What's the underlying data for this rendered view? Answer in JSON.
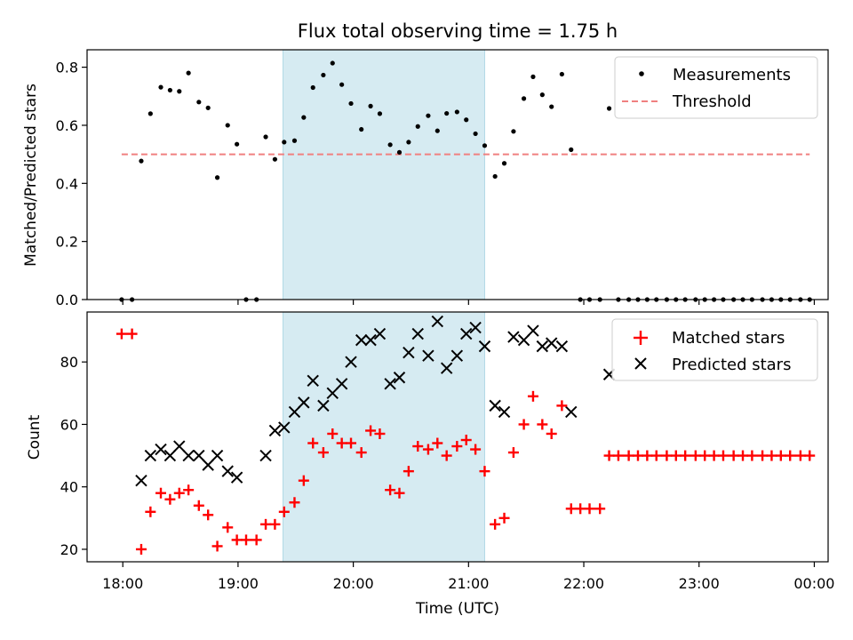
{
  "figure": {
    "title": "Flux total observing time = 1.75 h",
    "xlabel": "Time (UTC)",
    "x_tick_labels": [
      "18:00",
      "19:00",
      "20:00",
      "21:00",
      "22:00",
      "23:00",
      "00:00"
    ],
    "x_ticks_hours": [
      18,
      19,
      20,
      21,
      22,
      23,
      24
    ],
    "x_range_hours": [
      17.69,
      24.12
    ],
    "shaded_span_hours": [
      19.39,
      21.14
    ],
    "shaded_color": "#add8e6"
  },
  "chart_data": [
    {
      "type": "scatter",
      "ylabel": "Matched/Predicted stars",
      "ylim": [
        0,
        0.86
      ],
      "y_ticks": [
        0.0,
        0.2,
        0.4,
        0.6,
        0.8
      ],
      "y_tick_labels": [
        "0.0",
        "0.2",
        "0.4",
        "0.6",
        "0.8"
      ],
      "legend_position": "top-right",
      "series": [
        {
          "name": "Measurements",
          "marker": "dot",
          "color": "#000000",
          "x_hours": [
            17.99,
            18.08,
            18.16,
            18.24,
            18.33,
            18.41,
            18.49,
            18.57,
            18.66,
            18.74,
            18.82,
            18.91,
            18.99,
            19.07,
            19.16,
            19.24,
            19.32,
            19.4,
            19.49,
            19.57,
            19.65,
            19.74,
            19.82,
            19.9,
            19.98,
            20.07,
            20.15,
            20.23,
            20.32,
            20.4,
            20.48,
            20.56,
            20.65,
            20.73,
            20.81,
            20.9,
            20.98,
            21.06,
            21.14,
            21.23,
            21.31,
            21.39,
            21.48,
            21.56,
            21.64,
            21.72,
            21.81,
            21.89,
            21.97,
            22.05,
            22.14,
            22.22,
            22.3,
            22.39,
            22.47,
            22.55,
            22.63,
            22.72,
            22.8,
            22.88,
            22.97,
            23.05,
            23.13,
            23.21,
            23.3,
            23.38,
            23.46,
            23.55,
            23.63,
            23.71,
            23.79,
            23.88,
            23.96
          ],
          "y": [
            0.0,
            0.0,
            0.477,
            0.64,
            0.731,
            0.721,
            0.717,
            0.78,
            0.68,
            0.66,
            0.42,
            0.6,
            0.535,
            0.0,
            0.0,
            0.56,
            0.483,
            0.542,
            0.547,
            0.627,
            0.73,
            0.773,
            0.814,
            0.74,
            0.675,
            0.586,
            0.666,
            0.64,
            0.533,
            0.507,
            0.542,
            0.596,
            0.633,
            0.581,
            0.641,
            0.646,
            0.619,
            0.571,
            0.53,
            0.424,
            0.469,
            0.579,
            0.692,
            0.767,
            0.705,
            0.664,
            0.776,
            0.516,
            0.0,
            0.0,
            0.0,
            0.658,
            0.0,
            0.0,
            0.0,
            0.0,
            0.0,
            0.0,
            0.0,
            0.0,
            0.0,
            0.0,
            0.0,
            0.0,
            0.0,
            0.0,
            0.0,
            0.0,
            0.0,
            0.0,
            0.0,
            0.0,
            0.0
          ]
        },
        {
          "name": "Threshold",
          "marker": "dashed-line",
          "color": "#f08080",
          "x_hours": [
            17.99,
            23.96
          ],
          "y": [
            0.5,
            0.5
          ]
        }
      ]
    },
    {
      "type": "scatter",
      "ylabel": "Count",
      "ylim": [
        16,
        96
      ],
      "y_ticks": [
        20,
        40,
        60,
        80
      ],
      "y_tick_labels": [
        "20",
        "40",
        "60",
        "80"
      ],
      "legend_position": "top-right",
      "series": [
        {
          "name": "Matched stars",
          "marker": "plus",
          "color": "#ff0000",
          "x_hours": [
            17.99,
            18.08,
            18.16,
            18.24,
            18.33,
            18.41,
            18.49,
            18.57,
            18.66,
            18.74,
            18.82,
            18.91,
            18.99,
            19.07,
            19.16,
            19.24,
            19.32,
            19.4,
            19.49,
            19.57,
            19.65,
            19.74,
            19.82,
            19.9,
            19.98,
            20.07,
            20.15,
            20.23,
            20.32,
            20.4,
            20.48,
            20.56,
            20.65,
            20.73,
            20.81,
            20.9,
            20.98,
            21.06,
            21.14,
            21.23,
            21.31,
            21.39,
            21.48,
            21.56,
            21.64,
            21.72,
            21.81,
            21.89,
            21.97,
            22.05,
            22.14,
            22.22,
            22.3,
            22.39,
            22.47,
            22.55,
            22.63,
            22.72,
            22.8,
            22.88,
            22.97,
            23.05,
            23.13,
            23.21,
            23.3,
            23.38,
            23.46,
            23.55,
            23.63,
            23.71,
            23.79,
            23.88,
            23.96
          ],
          "y": [
            89,
            89,
            20,
            32,
            38,
            36,
            38,
            39,
            34,
            31,
            21,
            27,
            23,
            23,
            23,
            28,
            28,
            32,
            35,
            42,
            54,
            51,
            57,
            54,
            54,
            51,
            58,
            57,
            39,
            38,
            45,
            53,
            52,
            54,
            50,
            53,
            55,
            52,
            45,
            28,
            30,
            51,
            60,
            69,
            60,
            57,
            66,
            33,
            33,
            33,
            33,
            50,
            50,
            50,
            50,
            50,
            50,
            50,
            50,
            50,
            50,
            50,
            50,
            50,
            50,
            50,
            50,
            50,
            50,
            50,
            50,
            50,
            50
          ]
        },
        {
          "name": "Predicted stars",
          "marker": "x",
          "color": "#000000",
          "x_hours": [
            18.16,
            18.24,
            18.33,
            18.41,
            18.49,
            18.57,
            18.66,
            18.74,
            18.82,
            18.91,
            18.99,
            19.24,
            19.32,
            19.4,
            19.49,
            19.57,
            19.65,
            19.74,
            19.82,
            19.9,
            19.98,
            20.07,
            20.15,
            20.23,
            20.32,
            20.4,
            20.48,
            20.56,
            20.65,
            20.73,
            20.81,
            20.9,
            20.98,
            21.06,
            21.14,
            21.23,
            21.31,
            21.39,
            21.48,
            21.56,
            21.64,
            21.72,
            21.81,
            21.89,
            22.22
          ],
          "y": [
            42,
            50,
            52,
            50,
            53,
            50,
            50,
            47,
            50,
            45,
            43,
            50,
            58,
            59,
            64,
            67,
            74,
            66,
            70,
            73,
            80,
            87,
            87,
            89,
            73,
            75,
            83,
            89,
            82,
            93,
            78,
            82,
            89,
            91,
            85,
            66,
            64,
            88,
            87,
            90,
            85,
            86,
            85,
            64,
            76
          ]
        }
      ]
    }
  ]
}
